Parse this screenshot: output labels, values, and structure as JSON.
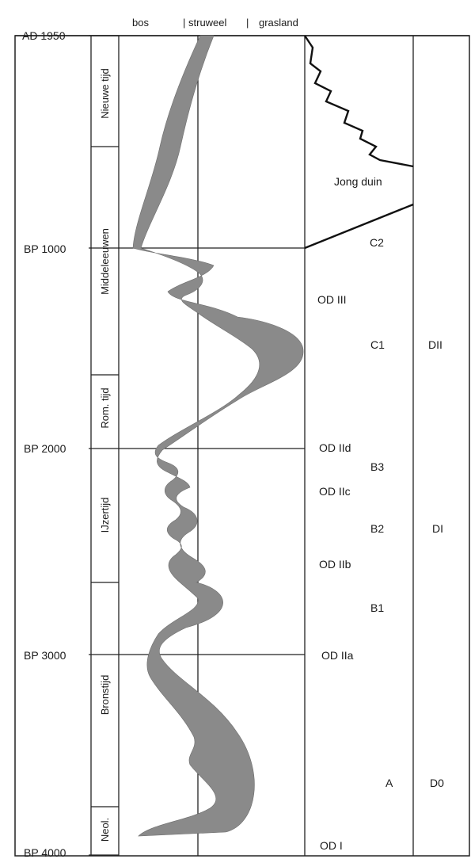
{
  "header": {
    "vegetation_types": [
      "bos",
      "struweel",
      "grasland"
    ]
  },
  "time_axis": {
    "labels": [
      "AD 1950",
      "BP 1000",
      "BP 2000",
      "BP 3000",
      "BP 4000"
    ]
  },
  "periods": [
    {
      "name": "Nieuwe tijd"
    },
    {
      "name": "Middeleeuwen"
    },
    {
      "name": "Rom. tijd"
    },
    {
      "name": "IJzertijd"
    },
    {
      "name": "Bronstijd"
    },
    {
      "name": "Neol."
    }
  ],
  "dune_phases": [
    "Jong duin",
    "OD III",
    "OD IId",
    "OD IIc",
    "OD IIb",
    "OD IIa",
    "OD I"
  ],
  "sub_phases": [
    "C2",
    "C1",
    "B3",
    "B2",
    "B1",
    "A"
  ],
  "d_phases": [
    "DII",
    "DI",
    "D0"
  ]
}
